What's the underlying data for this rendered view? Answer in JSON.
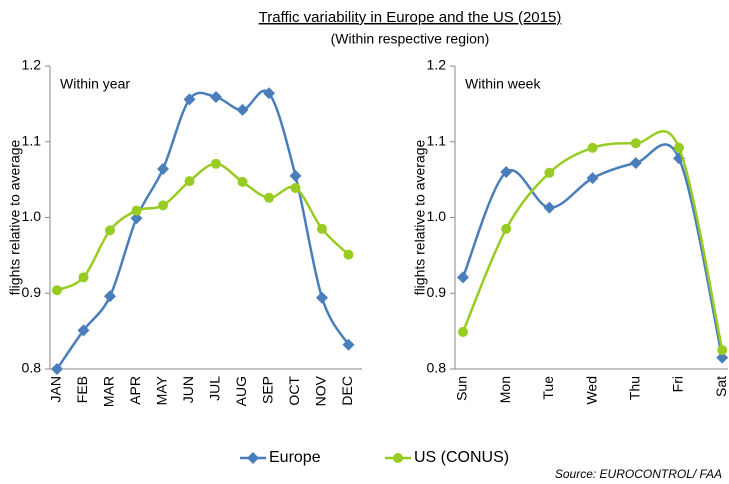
{
  "header": {
    "title": "Traffic variability in Europe and the US (2015)",
    "subtitle": "(Within respective region)",
    "source": "Source: EUROCONTROL/ FAA"
  },
  "chart_data": [
    {
      "type": "line",
      "annotation": "Within year",
      "y_label": "flights relative to average",
      "categories": [
        "JAN",
        "FEB",
        "MAR",
        "APR",
        "MAY",
        "JUN",
        "JUL",
        "AUG",
        "SEP",
        "OCT",
        "NOV",
        "DEC"
      ],
      "series": [
        {
          "name": "Europe",
          "color": "#4a7ebb",
          "marker": "diamond",
          "values": [
            0.8,
            0.851,
            0.896,
            0.999,
            1.064,
            1.156,
            1.159,
            1.142,
            1.164,
            1.055,
            0.894,
            0.832
          ]
        },
        {
          "name": "US (CONUS)",
          "color": "#99cc22",
          "marker": "circle",
          "values": [
            0.904,
            0.921,
            0.983,
            1.009,
            1.016,
            1.048,
            1.071,
            1.047,
            1.026,
            1.039,
            0.985,
            0.951
          ]
        }
      ],
      "ylim": [
        0.8,
        1.2
      ],
      "yticks": [
        {
          "value": 0.8,
          "label": "0.8"
        },
        {
          "value": 0.9,
          "label": "0.9"
        },
        {
          "value": 1.0,
          "label": "1.0"
        },
        {
          "value": 1.1,
          "label": "1.1"
        },
        {
          "value": 1.2,
          "label": "1.2"
        }
      ]
    },
    {
      "type": "line",
      "annotation": "Within week",
      "y_label": "flights relative to average",
      "categories": [
        "Sun",
        "Mon",
        "Tue",
        "Wed",
        "Thu",
        "Fri",
        "Sat"
      ],
      "series": [
        {
          "name": "Europe",
          "color": "#4a7ebb",
          "marker": "diamond",
          "values": [
            0.921,
            1.06,
            1.013,
            1.052,
            1.072,
            1.078,
            0.815
          ]
        },
        {
          "name": "US (CONUS)",
          "color": "#99cc22",
          "marker": "circle",
          "values": [
            0.849,
            0.985,
            1.059,
            1.092,
            1.098,
            1.092,
            0.825
          ]
        }
      ],
      "ylim": [
        0.8,
        1.2
      ],
      "yticks": [
        {
          "value": 0.8,
          "label": "0.8"
        },
        {
          "value": 0.9,
          "label": "0.9"
        },
        {
          "value": 1.0,
          "label": "1.0"
        },
        {
          "value": 1.1,
          "label": "1.1"
        },
        {
          "value": 1.2,
          "label": "1.2"
        }
      ]
    }
  ]
}
